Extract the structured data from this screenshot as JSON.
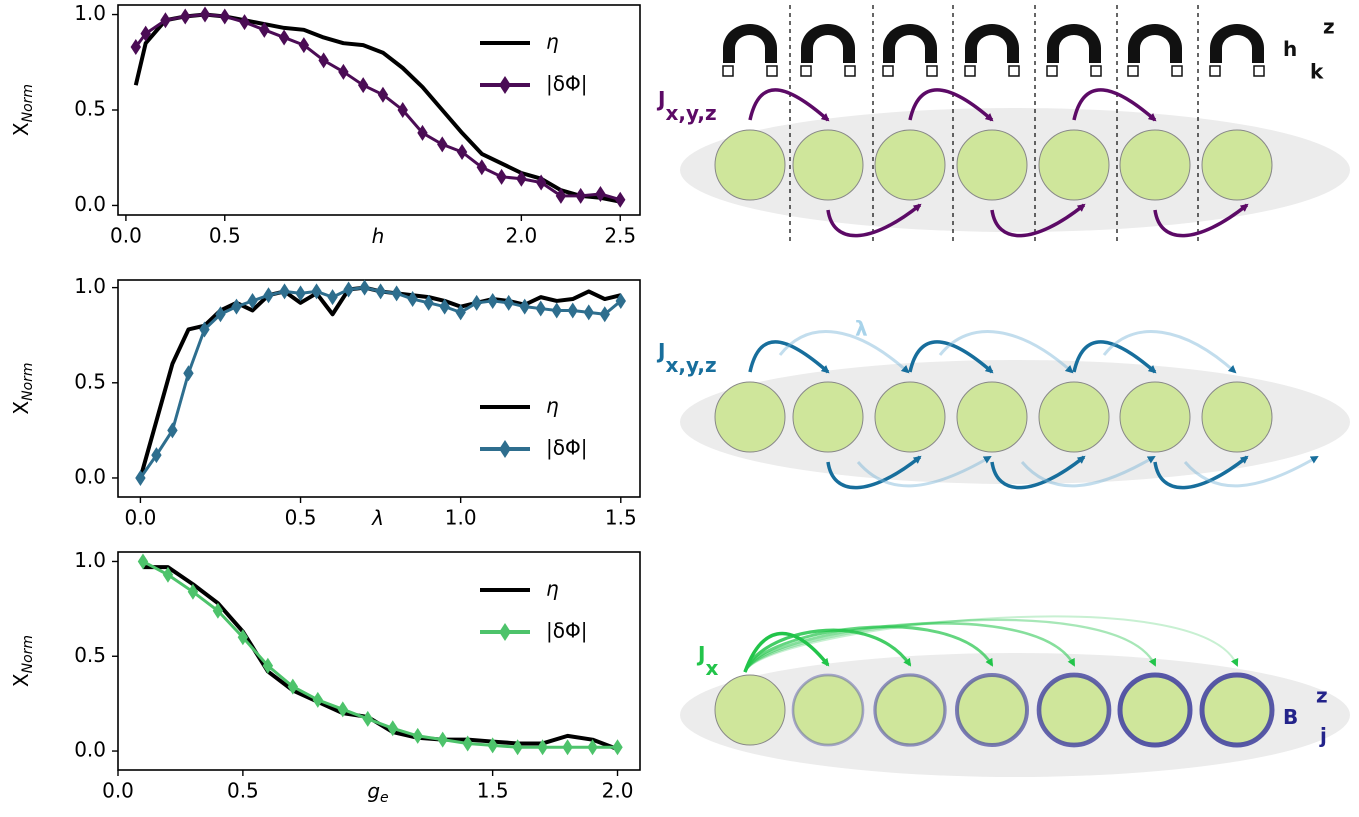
{
  "chart_data": [
    {
      "type": "line",
      "xlabel": "h",
      "ylabel": "X",
      "ylabel_sub": "Norm",
      "legend": "upper right",
      "xlim": [
        -0.04,
        2.6
      ],
      "ylim": [
        -0.05,
        1.05
      ],
      "xticks": [
        {
          "value": 0,
          "label": "0.0"
        },
        {
          "value": 0.5,
          "label": "0.5"
        },
        {
          "value": 2,
          "label": "2.0"
        },
        {
          "value": 2.5,
          "label": "2.5"
        }
      ],
      "yticks": [
        {
          "value": 0,
          "label": "0.0"
        },
        {
          "value": 0.5,
          "label": "0.5"
        },
        {
          "value": 1,
          "label": "1.0"
        }
      ],
      "x": [
        0.05,
        0.1,
        0.2,
        0.3,
        0.4,
        0.5,
        0.6,
        0.7,
        0.8,
        0.9,
        1.0,
        1.1,
        1.2,
        1.3,
        1.4,
        1.5,
        1.6,
        1.7,
        1.8,
        1.9,
        2.0,
        2.1,
        2.2,
        2.3,
        2.4,
        2.5
      ],
      "series": [
        {
          "name": "η",
          "color": "#000000",
          "marker": false,
          "values": [
            0.63,
            0.85,
            0.97,
            0.99,
            1.0,
            0.99,
            0.97,
            0.95,
            0.93,
            0.92,
            0.88,
            0.85,
            0.84,
            0.8,
            0.72,
            0.62,
            0.5,
            0.38,
            0.27,
            0.22,
            0.17,
            0.14,
            0.08,
            0.05,
            0.04,
            0.02
          ]
        },
        {
          "name": "|δΦ|",
          "color": "#4b0c55",
          "marker": true,
          "values": [
            0.83,
            0.9,
            0.97,
            0.99,
            1.0,
            0.99,
            0.96,
            0.92,
            0.88,
            0.84,
            0.76,
            0.7,
            0.63,
            0.58,
            0.5,
            0.38,
            0.32,
            0.28,
            0.2,
            0.15,
            0.14,
            0.12,
            0.05,
            0.05,
            0.06,
            0.03
          ]
        }
      ]
    },
    {
      "type": "line",
      "xlabel": "λ",
      "ylabel": "X",
      "ylabel_sub": "Norm",
      "legend": "lower right",
      "xlim": [
        -0.07,
        1.56
      ],
      "ylim": [
        -0.1,
        1.04
      ],
      "xticks": [
        {
          "value": 0,
          "label": "0.0"
        },
        {
          "value": 0.5,
          "label": "0.5"
        },
        {
          "value": 1,
          "label": "1.0"
        },
        {
          "value": 1.5,
          "label": "1.5"
        }
      ],
      "yticks": [
        {
          "value": 0,
          "label": "0.0"
        },
        {
          "value": 0.5,
          "label": "0.5"
        },
        {
          "value": 1,
          "label": "1.0"
        }
      ],
      "x": [
        0,
        0.05,
        0.1,
        0.15,
        0.2,
        0.25,
        0.3,
        0.35,
        0.4,
        0.45,
        0.5,
        0.55,
        0.6,
        0.65,
        0.7,
        0.75,
        0.8,
        0.85,
        0.9,
        0.95,
        1.0,
        1.05,
        1.1,
        1.15,
        1.2,
        1.25,
        1.3,
        1.35,
        1.4,
        1.45,
        1.5
      ],
      "series": [
        {
          "name": "η",
          "color": "#000000",
          "marker": false,
          "values": [
            0,
            0.3,
            0.6,
            0.78,
            0.8,
            0.88,
            0.92,
            0.88,
            0.96,
            0.98,
            0.92,
            0.97,
            0.86,
            0.99,
            1.0,
            0.98,
            0.97,
            0.96,
            0.95,
            0.93,
            0.9,
            0.92,
            0.94,
            0.93,
            0.91,
            0.95,
            0.93,
            0.94,
            0.98,
            0.94,
            0.96
          ]
        },
        {
          "name": "|δΦ|",
          "color": "#2e6e8e",
          "marker": true,
          "values": [
            0,
            0.12,
            0.25,
            0.55,
            0.78,
            0.86,
            0.9,
            0.93,
            0.96,
            0.98,
            0.97,
            0.98,
            0.95,
            0.99,
            1.0,
            0.98,
            0.97,
            0.94,
            0.92,
            0.9,
            0.87,
            0.92,
            0.93,
            0.92,
            0.9,
            0.89,
            0.88,
            0.88,
            0.87,
            0.86,
            0.93
          ]
        }
      ]
    },
    {
      "type": "line",
      "xlabel": "g",
      "xlabel_sub": "e",
      "ylabel": "X",
      "ylabel_sub": "Norm",
      "legend": "upper right",
      "xlim": [
        0,
        2.09
      ],
      "ylim": [
        -0.1,
        1.05
      ],
      "xticks": [
        {
          "value": 0,
          "label": "0.0"
        },
        {
          "value": 0.5,
          "label": "0.5"
        },
        {
          "value": 1.5,
          "label": "1.5"
        },
        {
          "value": 2,
          "label": "2.0"
        }
      ],
      "yticks": [
        {
          "value": 0,
          "label": "0.0"
        },
        {
          "value": 0.5,
          "label": "0.5"
        },
        {
          "value": 1,
          "label": "1.0"
        }
      ],
      "x": [
        0.1,
        0.2,
        0.3,
        0.4,
        0.5,
        0.6,
        0.7,
        0.8,
        0.9,
        1.0,
        1.1,
        1.2,
        1.3,
        1.4,
        1.5,
        1.6,
        1.7,
        1.8,
        1.9,
        2.0
      ],
      "series": [
        {
          "name": "η",
          "color": "#000000",
          "marker": false,
          "values": [
            0.97,
            0.97,
            0.88,
            0.78,
            0.63,
            0.42,
            0.32,
            0.26,
            0.2,
            0.18,
            0.1,
            0.07,
            0.06,
            0.06,
            0.05,
            0.04,
            0.04,
            0.08,
            0.06,
            0.01
          ]
        },
        {
          "name": "|δΦ|",
          "color": "#4dc36b",
          "marker": true,
          "values": [
            1.0,
            0.93,
            0.84,
            0.74,
            0.6,
            0.45,
            0.34,
            0.27,
            0.22,
            0.17,
            0.12,
            0.08,
            0.06,
            0.04,
            0.03,
            0.02,
            0.02,
            0.02,
            0.02,
            0.02
          ]
        }
      ]
    }
  ],
  "diagrams": [
    {
      "coupling": "J",
      "coupling_sub": "x,y,z",
      "field": "h",
      "field_sub": "k",
      "field_sup": "z"
    },
    {
      "coupling": "J",
      "coupling_sub": "x,y,z",
      "extra": "λ"
    },
    {
      "coupling": "J",
      "coupling_sub": "x",
      "field": "B",
      "field_sup": "z",
      "field_sub": "j"
    }
  ]
}
